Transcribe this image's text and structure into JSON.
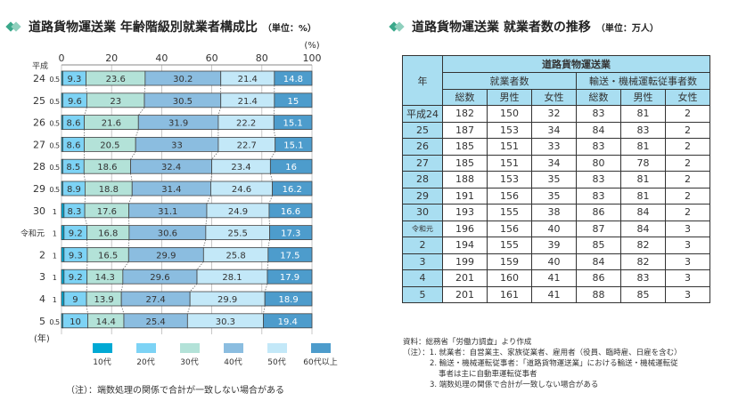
{
  "left_title": {
    "text": "道路貨物運送業 年齢階級別就業者構成比",
    "unit": "（単位：%）"
  },
  "right_title": {
    "text": "道路貨物運送業 就業者数の推移",
    "unit": "（単位：万人）"
  },
  "chart_data": {
    "type": "bar",
    "orientation": "horizontal-stacked",
    "title": "道路貨物運送業 年齢階級別就業者構成比",
    "xlabel": "(%)",
    "ylabel": "(年)",
    "era_label": "平成",
    "xlim": [
      0,
      100
    ],
    "xticks": [
      "0",
      "20",
      "40",
      "60",
      "80",
      "100"
    ],
    "categories": [
      "24",
      "25",
      "26",
      "27",
      "28",
      "29",
      "30",
      "令和元",
      "2",
      "3",
      "4",
      "5"
    ],
    "series": [
      {
        "name": "10代",
        "color": "#00a9d4",
        "values": [
          0.5,
          0.5,
          0.5,
          0.5,
          0.5,
          0.5,
          1.0,
          1.0,
          1.0,
          1.0,
          1.0,
          0.5
        ]
      },
      {
        "name": "20代",
        "color": "#7dd3f5",
        "values": [
          9.3,
          9.6,
          8.6,
          8.6,
          8.5,
          8.9,
          8.3,
          9.2,
          9.3,
          9.2,
          9.0,
          10.0
        ]
      },
      {
        "name": "30代",
        "color": "#b3e2d8",
        "values": [
          23.6,
          23.0,
          21.6,
          20.5,
          18.6,
          18.8,
          17.6,
          16.8,
          16.5,
          14.3,
          13.9,
          14.4
        ]
      },
      {
        "name": "40代",
        "color": "#8bbde0",
        "values": [
          30.2,
          30.5,
          31.9,
          33.0,
          32.4,
          31.4,
          31.1,
          30.6,
          29.9,
          29.6,
          27.4,
          25.4
        ]
      },
      {
        "name": "50代",
        "color": "#c3e8f8",
        "values": [
          21.4,
          21.4,
          22.2,
          22.7,
          23.4,
          24.6,
          24.9,
          25.5,
          25.8,
          28.1,
          29.9,
          30.3
        ]
      },
      {
        "name": "60代以上",
        "color": "#4d9ccc",
        "values": [
          14.8,
          15.0,
          15.1,
          15.1,
          16.0,
          16.2,
          16.6,
          17.3,
          17.5,
          17.9,
          18.9,
          19.4
        ]
      }
    ],
    "note": "（注）：端数処理の関係で合計が一致しない場合がある"
  },
  "table": {
    "year_header": "年",
    "group_header": "道路貨物運送業",
    "sub_headers": [
      "就業者数",
      "輸送・機械運転従事者数"
    ],
    "col_headers": [
      "総数",
      "男性",
      "女性",
      "総数",
      "男性",
      "女性"
    ],
    "rows": [
      [
        "平成24",
        "182",
        "150",
        "32",
        "83",
        "81",
        "2"
      ],
      [
        "25",
        "187",
        "153",
        "34",
        "84",
        "83",
        "2"
      ],
      [
        "26",
        "185",
        "151",
        "33",
        "83",
        "81",
        "2"
      ],
      [
        "27",
        "185",
        "151",
        "34",
        "80",
        "78",
        "2"
      ],
      [
        "28",
        "188",
        "153",
        "35",
        "83",
        "81",
        "2"
      ],
      [
        "29",
        "191",
        "156",
        "35",
        "83",
        "81",
        "2"
      ],
      [
        "30",
        "193",
        "155",
        "38",
        "86",
        "84",
        "2"
      ],
      [
        "令和元",
        "196",
        "156",
        "40",
        "87",
        "84",
        "3"
      ],
      [
        "2",
        "194",
        "155",
        "39",
        "85",
        "82",
        "3"
      ],
      [
        "3",
        "199",
        "159",
        "40",
        "84",
        "82",
        "3"
      ],
      [
        "4",
        "201",
        "160",
        "41",
        "86",
        "83",
        "3"
      ],
      [
        "5",
        "201",
        "161",
        "41",
        "88",
        "85",
        "3"
      ]
    ]
  },
  "notes": {
    "source": "資料：総務省「労働力調査」より作成",
    "n1": "（注）：1. 就業者：自営業主、家族従業者、雇用者（役員、臨時雇、日雇を含む）",
    "n2a": "2. 輸送・機械運転従事者：「道路貨物運送業」における輸送・機械運転従",
    "n2b": "事者は主に自動車運転従事者",
    "n3": "3. 端数処理の関係で合計が一致しない場合がある"
  }
}
